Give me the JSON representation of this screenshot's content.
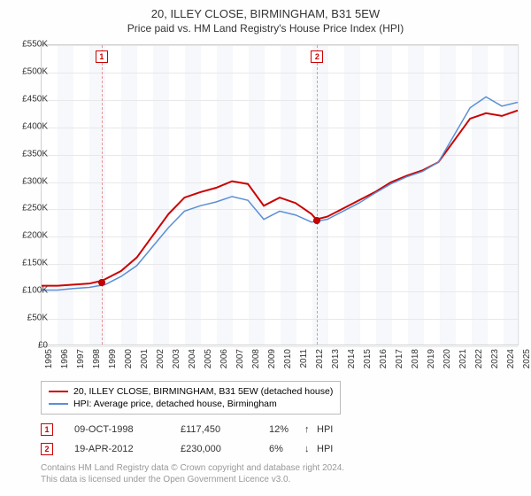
{
  "title": "20, ILLEY CLOSE, BIRMINGHAM, B31 5EW",
  "subtitle": "Price paid vs. HM Land Registry's House Price Index (HPI)",
  "chart": {
    "type": "line",
    "x_years": [
      1995,
      1996,
      1997,
      1998,
      1999,
      2000,
      2001,
      2002,
      2003,
      2004,
      2005,
      2006,
      2007,
      2008,
      2009,
      2010,
      2011,
      2012,
      2013,
      2014,
      2015,
      2016,
      2017,
      2018,
      2019,
      2020,
      2021,
      2022,
      2023,
      2024,
      2025
    ],
    "ylim": [
      0,
      550
    ],
    "ytick_step": 50,
    "ytick_labels": [
      "£0",
      "£50K",
      "£100K",
      "£150K",
      "£200K",
      "£250K",
      "£300K",
      "£350K",
      "£400K",
      "£450K",
      "£500K",
      "£550K"
    ],
    "background_color": "#ffffff",
    "grid_color": "#e8e8e8",
    "alt_band_color": "#eef2f8",
    "series": [
      {
        "name": "price_paid",
        "label": "20, ILLEY CLOSE, BIRMINGHAM, B31 5EW (detached house)",
        "color": "#cc0000",
        "width": 2,
        "data": [
          [
            1995,
            108
          ],
          [
            1996,
            108
          ],
          [
            1997,
            110
          ],
          [
            1998,
            112
          ],
          [
            1998.77,
            117
          ],
          [
            1999,
            120
          ],
          [
            2000,
            135
          ],
          [
            2001,
            160
          ],
          [
            2002,
            200
          ],
          [
            2003,
            240
          ],
          [
            2004,
            270
          ],
          [
            2005,
            280
          ],
          [
            2006,
            288
          ],
          [
            2007,
            300
          ],
          [
            2008,
            295
          ],
          [
            2009,
            255
          ],
          [
            2010,
            270
          ],
          [
            2011,
            260
          ],
          [
            2012,
            240
          ],
          [
            2012.3,
            230
          ],
          [
            2013,
            235
          ],
          [
            2014,
            250
          ],
          [
            2015,
            265
          ],
          [
            2016,
            280
          ],
          [
            2017,
            298
          ],
          [
            2018,
            310
          ],
          [
            2019,
            320
          ],
          [
            2020,
            335
          ],
          [
            2021,
            375
          ],
          [
            2022,
            415
          ],
          [
            2023,
            425
          ],
          [
            2024,
            420
          ],
          [
            2025,
            430
          ]
        ]
      },
      {
        "name": "hpi",
        "label": "HPI: Average price, detached house, Birmingham",
        "color": "#5b8fd6",
        "width": 1.5,
        "data": [
          [
            1995,
            100
          ],
          [
            1996,
            100
          ],
          [
            1997,
            103
          ],
          [
            1998,
            105
          ],
          [
            1999,
            110
          ],
          [
            2000,
            125
          ],
          [
            2001,
            145
          ],
          [
            2002,
            180
          ],
          [
            2003,
            215
          ],
          [
            2004,
            245
          ],
          [
            2005,
            255
          ],
          [
            2006,
            262
          ],
          [
            2007,
            272
          ],
          [
            2008,
            265
          ],
          [
            2009,
            230
          ],
          [
            2010,
            245
          ],
          [
            2011,
            238
          ],
          [
            2012,
            225
          ],
          [
            2013,
            230
          ],
          [
            2014,
            245
          ],
          [
            2015,
            260
          ],
          [
            2016,
            278
          ],
          [
            2017,
            295
          ],
          [
            2018,
            308
          ],
          [
            2019,
            318
          ],
          [
            2020,
            335
          ],
          [
            2021,
            385
          ],
          [
            2022,
            435
          ],
          [
            2023,
            455
          ],
          [
            2024,
            438
          ],
          [
            2025,
            445
          ]
        ]
      }
    ],
    "sale_markers": [
      {
        "n": "1",
        "year": 1998.77,
        "price": 117
      },
      {
        "n": "2",
        "year": 2012.3,
        "price": 230
      }
    ]
  },
  "legend": {
    "rows": [
      {
        "color": "#cc0000",
        "label": "20, ILLEY CLOSE, BIRMINGHAM, B31 5EW (detached house)"
      },
      {
        "color": "#5b8fd6",
        "label": "HPI: Average price, detached house, Birmingham"
      }
    ]
  },
  "sales": [
    {
      "n": "1",
      "date": "09-OCT-1998",
      "price": "£117,450",
      "pct": "12%",
      "arrow": "↑",
      "vs": "HPI"
    },
    {
      "n": "2",
      "date": "19-APR-2012",
      "price": "£230,000",
      "pct": "6%",
      "arrow": "↓",
      "vs": "HPI"
    }
  ],
  "footer": {
    "line1": "Contains HM Land Registry data © Crown copyright and database right 2024.",
    "line2": "This data is licensed under the Open Government Licence v3.0."
  }
}
